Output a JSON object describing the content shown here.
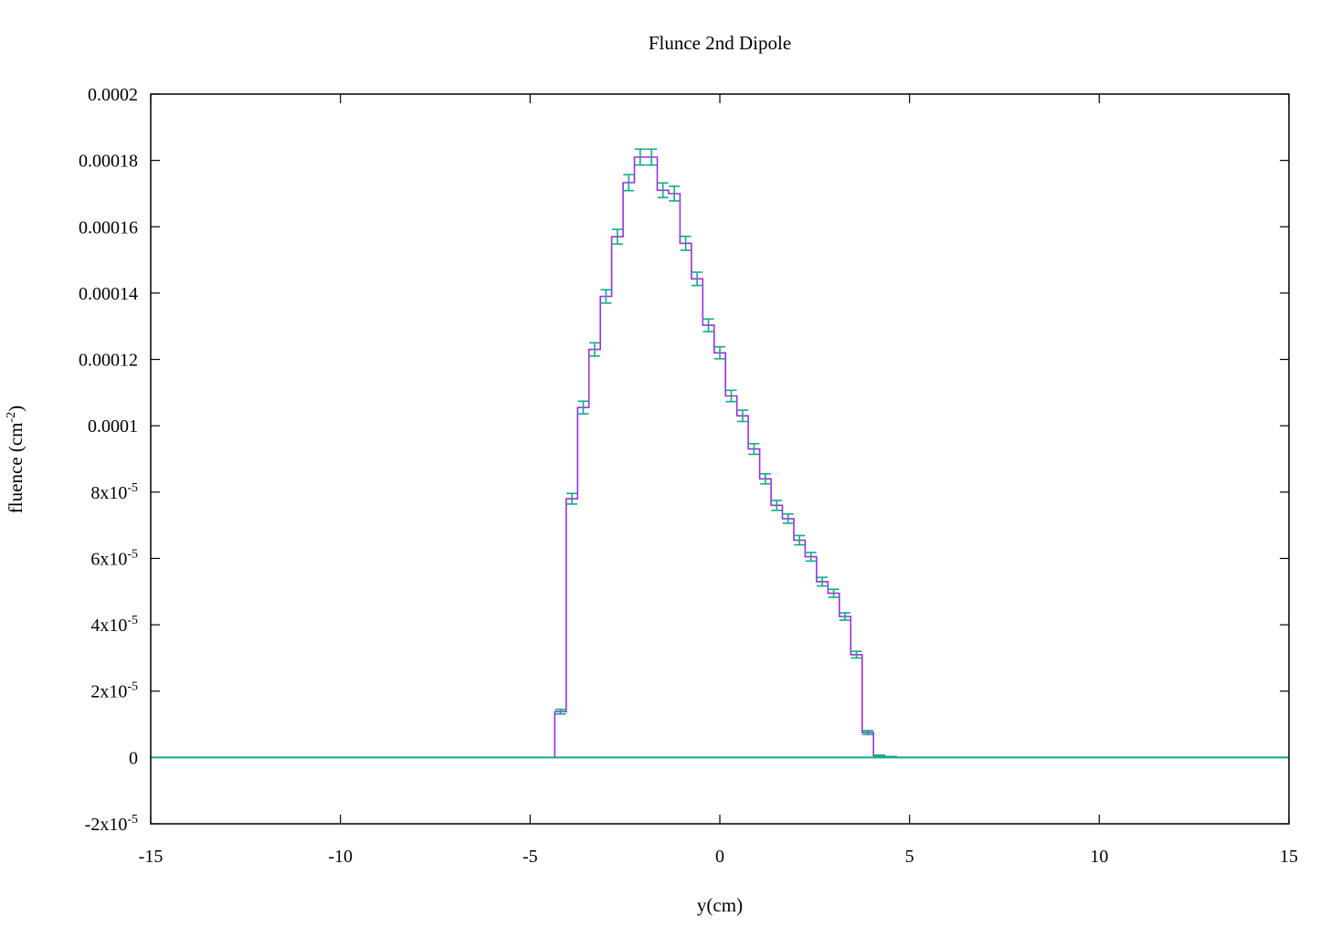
{
  "chart_data": {
    "type": "line",
    "title": "Flunce 2nd Dipole",
    "xlabel": "y(cm)",
    "ylabel_main": "fluence (cm",
    "ylabel_sup": "-2",
    "ylabel_close": ")",
    "xlim": [
      -15,
      15
    ],
    "ylim": [
      -2e-05,
      0.0002
    ],
    "grid": false,
    "legend": "none",
    "x_ticks": [
      {
        "value": -15,
        "label": "-15"
      },
      {
        "value": -10,
        "label": "-10"
      },
      {
        "value": -5,
        "label": "-5"
      },
      {
        "value": 0,
        "label": "0"
      },
      {
        "value": 5,
        "label": "5"
      },
      {
        "value": 10,
        "label": "10"
      },
      {
        "value": 15,
        "label": "15"
      }
    ],
    "y_ticks": [
      {
        "value": -2e-05,
        "label": "-2x10",
        "sup": "-5"
      },
      {
        "value": 0,
        "label": "0",
        "sup": ""
      },
      {
        "value": 2e-05,
        "label": "2x10",
        "sup": "-5"
      },
      {
        "value": 4e-05,
        "label": "4x10",
        "sup": "-5"
      },
      {
        "value": 6e-05,
        "label": "6x10",
        "sup": "-5"
      },
      {
        "value": 8e-05,
        "label": "8x10",
        "sup": "-5"
      },
      {
        "value": 0.0001,
        "label": "0.0001",
        "sup": ""
      },
      {
        "value": 0.00012,
        "label": "0.00012",
        "sup": ""
      },
      {
        "value": 0.00014,
        "label": "0.00014",
        "sup": ""
      },
      {
        "value": 0.00016,
        "label": "0.00016",
        "sup": ""
      },
      {
        "value": 0.00018,
        "label": "0.00018",
        "sup": ""
      },
      {
        "value": 0.0002,
        "label": "0.0002",
        "sup": ""
      }
    ],
    "colors": {
      "step_line": "#9b30e0",
      "error_bars": "#13a98a",
      "axes": "#000000"
    },
    "series": [
      {
        "style": "steps-with-errorbars",
        "bin_width": 0.3,
        "bins": [
          {
            "x": -4.2,
            "y": 1.38e-05,
            "err": 7e-07
          },
          {
            "x": -3.9,
            "y": 7.8e-05,
            "err": 1.6e-06
          },
          {
            "x": -3.6,
            "y": 0.0001055,
            "err": 1.9e-06
          },
          {
            "x": -3.3,
            "y": 0.000123,
            "err": 2e-06
          },
          {
            "x": -3.0,
            "y": 0.000139,
            "err": 2e-06
          },
          {
            "x": -2.7,
            "y": 0.000157,
            "err": 2.2e-06
          },
          {
            "x": -2.4,
            "y": 0.0001733,
            "err": 2.4e-06
          },
          {
            "x": -2.1,
            "y": 0.000181,
            "err": 2.4e-06
          },
          {
            "x": -1.8,
            "y": 0.000181,
            "err": 2.4e-06
          },
          {
            "x": -1.5,
            "y": 0.000171,
            "err": 2.2e-06
          },
          {
            "x": -1.2,
            "y": 0.00017,
            "err": 2.2e-06
          },
          {
            "x": -0.9,
            "y": 0.000155,
            "err": 2.1e-06
          },
          {
            "x": -0.6,
            "y": 0.0001443,
            "err": 2e-06
          },
          {
            "x": -0.3,
            "y": 0.0001303,
            "err": 1.9e-06
          },
          {
            "x": 0.0,
            "y": 0.000122,
            "err": 1.8e-06
          },
          {
            "x": 0.3,
            "y": 0.000109,
            "err": 1.7e-06
          },
          {
            "x": 0.6,
            "y": 0.000103,
            "err": 1.7e-06
          },
          {
            "x": 0.9,
            "y": 9.3e-05,
            "err": 1.6e-06
          },
          {
            "x": 1.2,
            "y": 8.4e-05,
            "err": 1.5e-06
          },
          {
            "x": 1.5,
            "y": 7.6e-05,
            "err": 1.5e-06
          },
          {
            "x": 1.8,
            "y": 7.2e-05,
            "err": 1.4e-06
          },
          {
            "x": 2.1,
            "y": 6.55e-05,
            "err": 1.4e-06
          },
          {
            "x": 2.4,
            "y": 6.05e-05,
            "err": 1.3e-06
          },
          {
            "x": 2.7,
            "y": 5.3e-05,
            "err": 1.3e-06
          },
          {
            "x": 3.0,
            "y": 4.95e-05,
            "err": 1.2e-06
          },
          {
            "x": 3.3,
            "y": 4.25e-05,
            "err": 1.1e-06
          },
          {
            "x": 3.6,
            "y": 3.1e-05,
            "err": 1e-06
          },
          {
            "x": 3.9,
            "y": 7.5e-06,
            "err": 6e-07
          },
          {
            "x": 4.2,
            "y": 5e-07,
            "err": 2e-07
          },
          {
            "x": 4.5,
            "y": 2e-07,
            "err": 1e-07
          }
        ]
      }
    ]
  }
}
